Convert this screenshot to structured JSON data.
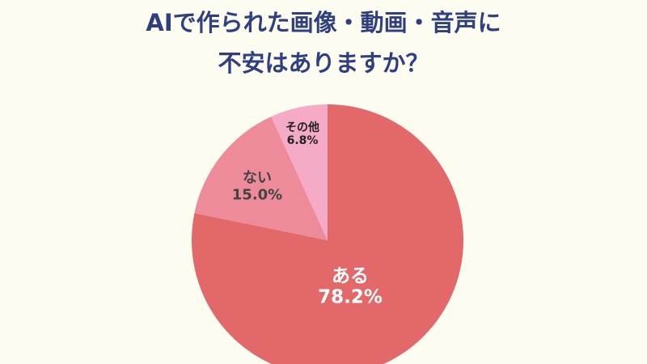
{
  "chart_data": {
    "type": "pie",
    "title": [
      "AIで作られた画像・動画・音声に",
      "不安はありますか？"
    ],
    "categories": [
      "ある",
      "ない",
      "その他"
    ],
    "values": [
      78.2,
      15.0,
      6.8
    ],
    "value_labels": [
      "78.2%",
      "15.0%",
      "6.8%"
    ],
    "colors": [
      "#e36869",
      "#ee8b9b",
      "#f5abc6"
    ]
  }
}
